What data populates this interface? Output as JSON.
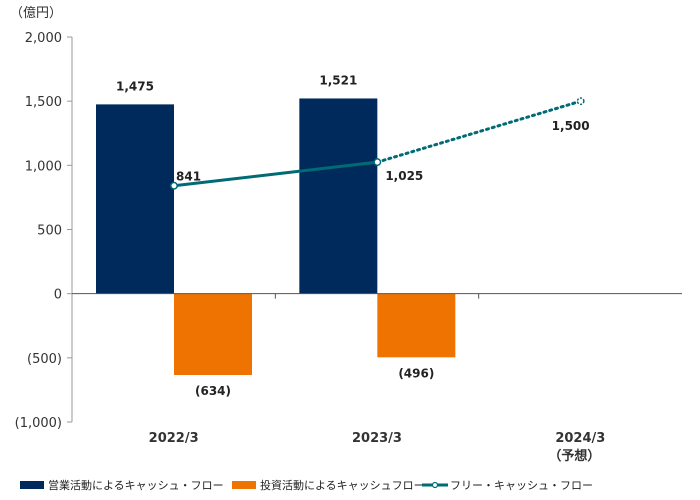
{
  "chart_data": {
    "type": "bar+line",
    "unit_label": "（億円）",
    "categories": [
      "2022/3",
      "2023/3",
      "2024/3"
    ],
    "category_sublabels": [
      "",
      "",
      "（予想）"
    ],
    "ylim": [
      -1000,
      2000
    ],
    "yticks": [
      2000,
      1500,
      1000,
      500,
      0,
      -500,
      -1000
    ],
    "ytick_labels": [
      "2,000",
      "1,500",
      "1,000",
      "500",
      "0",
      "(500)",
      "(1,000)"
    ],
    "series": [
      {
        "name": "営業活動によるキャッシュ・フロー",
        "type": "bar",
        "color": "#002a5c",
        "values": [
          1475,
          1521,
          null
        ],
        "labels": [
          "1,475",
          "1,521",
          ""
        ]
      },
      {
        "name": "投資活動によるキャッシュフロー",
        "type": "bar",
        "color": "#ee7300",
        "values": [
          -634,
          -496,
          null
        ],
        "labels": [
          "(634)",
          "(496)",
          ""
        ]
      },
      {
        "name": "フリー・キャッシュ・フロー",
        "type": "line",
        "color": "#006b75",
        "values": [
          841,
          1025,
          1500
        ],
        "labels": [
          "841",
          "1,025",
          "1,500"
        ],
        "forecast_from_index": 1
      }
    ]
  }
}
